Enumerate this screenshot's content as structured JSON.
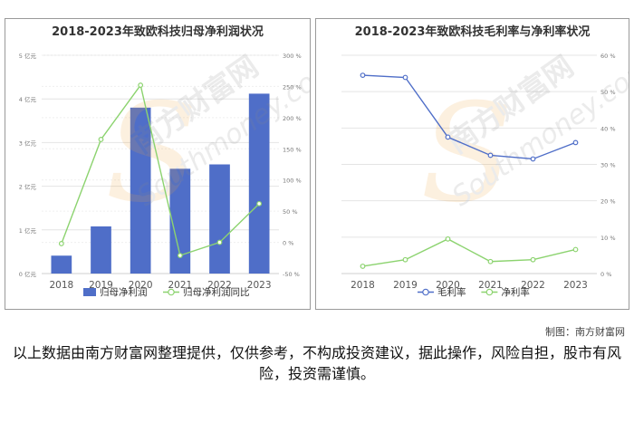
{
  "chart_data": [
    {
      "type": "bar+line",
      "title": "2018-2023年致欧科技归母净利润状况",
      "categories": [
        "2018",
        "2019",
        "2020",
        "2021",
        "2022",
        "2023"
      ],
      "y_left": {
        "ticks": [
          "0 亿元",
          "1 亿元",
          "2 亿元",
          "3 亿元",
          "4 亿元",
          "5 亿元"
        ],
        "lim": [
          0,
          5
        ]
      },
      "y_right": {
        "ticks": [
          "-50 %",
          "0 %",
          "50 %",
          "100 %",
          "150 %",
          "200 %",
          "250 %",
          "300 %"
        ],
        "lim": [
          -50,
          300
        ]
      },
      "series": [
        {
          "name": "归母净利润",
          "kind": "bar",
          "axis": "left",
          "color": "#4f6ec8",
          "values": [
            0.41,
            1.08,
            3.8,
            2.4,
            2.5,
            4.12
          ]
        },
        {
          "name": "归母净利润同比",
          "kind": "line",
          "axis": "right",
          "color": "#8cd36f",
          "values": [
            -2,
            165,
            252,
            -21,
            0,
            62
          ]
        }
      ],
      "legend": "bottom",
      "grid": true
    },
    {
      "type": "line",
      "title": "2018-2023年致欧科技毛利率与净利率状况",
      "categories": [
        "2018",
        "2019",
        "2020",
        "2021",
        "2022",
        "2023"
      ],
      "y_right": {
        "ticks": [
          "0 %",
          "10 %",
          "20 %",
          "30 %",
          "40 %",
          "50 %",
          "60 %"
        ],
        "lim": [
          0,
          60
        ]
      },
      "series": [
        {
          "name": "毛利率",
          "kind": "line",
          "axis": "right",
          "color": "#4f6ec8",
          "values": [
            54.5,
            53.9,
            37.5,
            32.5,
            31.5,
            36.0
          ]
        },
        {
          "name": "净利率",
          "kind": "line",
          "axis": "right",
          "color": "#8cd36f",
          "values": [
            2.0,
            3.8,
            9.5,
            3.3,
            3.8,
            6.6
          ]
        }
      ],
      "legend": "bottom",
      "grid": true
    }
  ],
  "watermark": {
    "brand": "南方财富网",
    "site": "Southmoney.com"
  },
  "credit": "制图：南方财富网",
  "disclaimer": "以上数据由南方财富网整理提供，仅供参考，不构成投资建议，据此操作，风险自担，股市有风险，投资需谨慎。"
}
